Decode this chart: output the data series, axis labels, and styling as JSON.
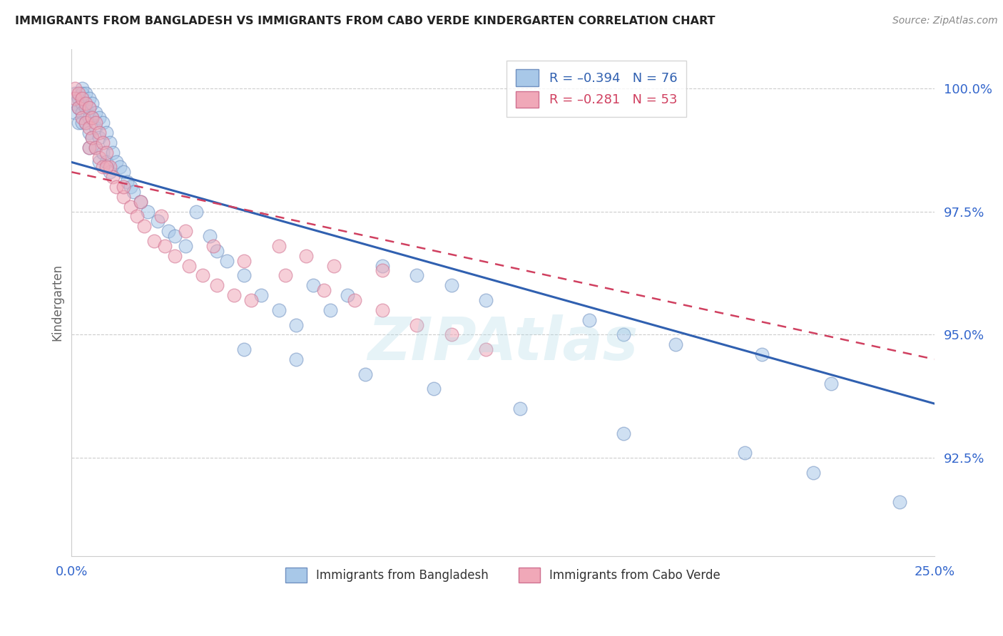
{
  "title": "IMMIGRANTS FROM BANGLADESH VS IMMIGRANTS FROM CABO VERDE KINDERGARTEN CORRELATION CHART",
  "source": "Source: ZipAtlas.com",
  "ylabel": "Kindergarten",
  "xlim": [
    0.0,
    0.25
  ],
  "ylim": [
    0.905,
    1.008
  ],
  "yticks": [
    0.925,
    0.95,
    0.975,
    1.0
  ],
  "ytick_labels": [
    "92.5%",
    "95.0%",
    "97.5%",
    "100.0%"
  ],
  "xticks": [
    0.0,
    0.05,
    0.1,
    0.15,
    0.2,
    0.25
  ],
  "legend_blue_r": "R = –0.394",
  "legend_blue_n": "N = 76",
  "legend_pink_r": "R = –0.281",
  "legend_pink_n": "N = 53",
  "legend_blue_bottom_label": "Immigrants from Bangladesh",
  "legend_pink_bottom_label": "Immigrants from Cabo Verde",
  "blue_color": "#a8c8e8",
  "pink_color": "#f0a8b8",
  "blue_edge_color": "#7090c0",
  "pink_edge_color": "#d07090",
  "blue_line_color": "#3060b0",
  "pink_line_color": "#d04060",
  "watermark": "ZIPAtlas",
  "background_color": "#ffffff",
  "grid_color": "#cccccc",
  "title_color": "#222222",
  "axis_color": "#3366cc",
  "blue_line_x0": 0.0,
  "blue_line_y0": 0.985,
  "blue_line_x1": 0.25,
  "blue_line_y1": 0.936,
  "pink_line_x0": 0.0,
  "pink_line_y0": 0.983,
  "pink_line_x1": 0.25,
  "pink_line_y1": 0.945,
  "blue_scatter_x": [
    0.001,
    0.001,
    0.001,
    0.002,
    0.002,
    0.002,
    0.003,
    0.003,
    0.003,
    0.003,
    0.003,
    0.004,
    0.004,
    0.004,
    0.005,
    0.005,
    0.005,
    0.005,
    0.005,
    0.006,
    0.006,
    0.006,
    0.007,
    0.007,
    0.007,
    0.008,
    0.008,
    0.008,
    0.009,
    0.009,
    0.01,
    0.01,
    0.011,
    0.011,
    0.012,
    0.013,
    0.014,
    0.015,
    0.016,
    0.017,
    0.018,
    0.02,
    0.022,
    0.025,
    0.028,
    0.03,
    0.033,
    0.036,
    0.04,
    0.042,
    0.045,
    0.05,
    0.055,
    0.06,
    0.065,
    0.07,
    0.075,
    0.08,
    0.09,
    0.1,
    0.11,
    0.12,
    0.15,
    0.16,
    0.175,
    0.2,
    0.22,
    0.05,
    0.065,
    0.085,
    0.105,
    0.13,
    0.16,
    0.195,
    0.215,
    0.24
  ],
  "blue_scatter_y": [
    0.999,
    0.997,
    0.995,
    0.998,
    0.993,
    0.996,
    1.0,
    0.999,
    0.997,
    0.995,
    0.993,
    0.999,
    0.996,
    0.993,
    0.998,
    0.996,
    0.994,
    0.991,
    0.988,
    0.997,
    0.994,
    0.99,
    0.995,
    0.992,
    0.988,
    0.994,
    0.99,
    0.985,
    0.993,
    0.987,
    0.991,
    0.985,
    0.989,
    0.983,
    0.987,
    0.985,
    0.984,
    0.983,
    0.981,
    0.98,
    0.979,
    0.977,
    0.975,
    0.973,
    0.971,
    0.97,
    0.968,
    0.975,
    0.97,
    0.967,
    0.965,
    0.962,
    0.958,
    0.955,
    0.952,
    0.96,
    0.955,
    0.958,
    0.964,
    0.962,
    0.96,
    0.957,
    0.953,
    0.95,
    0.948,
    0.946,
    0.94,
    0.947,
    0.945,
    0.942,
    0.939,
    0.935,
    0.93,
    0.926,
    0.922,
    0.916
  ],
  "pink_scatter_x": [
    0.001,
    0.001,
    0.002,
    0.002,
    0.003,
    0.003,
    0.004,
    0.004,
    0.005,
    0.005,
    0.005,
    0.006,
    0.006,
    0.007,
    0.007,
    0.008,
    0.008,
    0.009,
    0.009,
    0.01,
    0.011,
    0.012,
    0.013,
    0.015,
    0.017,
    0.019,
    0.021,
    0.024,
    0.027,
    0.03,
    0.034,
    0.038,
    0.042,
    0.047,
    0.052,
    0.06,
    0.068,
    0.076,
    0.09,
    0.01,
    0.015,
    0.02,
    0.026,
    0.033,
    0.041,
    0.05,
    0.062,
    0.073,
    0.082,
    0.09,
    0.1,
    0.11,
    0.12
  ],
  "pink_scatter_y": [
    1.0,
    0.998,
    0.999,
    0.996,
    0.998,
    0.994,
    0.997,
    0.993,
    0.996,
    0.992,
    0.988,
    0.994,
    0.99,
    0.993,
    0.988,
    0.991,
    0.986,
    0.989,
    0.984,
    0.987,
    0.984,
    0.982,
    0.98,
    0.978,
    0.976,
    0.974,
    0.972,
    0.969,
    0.968,
    0.966,
    0.964,
    0.962,
    0.96,
    0.958,
    0.957,
    0.968,
    0.966,
    0.964,
    0.963,
    0.984,
    0.98,
    0.977,
    0.974,
    0.971,
    0.968,
    0.965,
    0.962,
    0.959,
    0.957,
    0.955,
    0.952,
    0.95,
    0.947
  ]
}
